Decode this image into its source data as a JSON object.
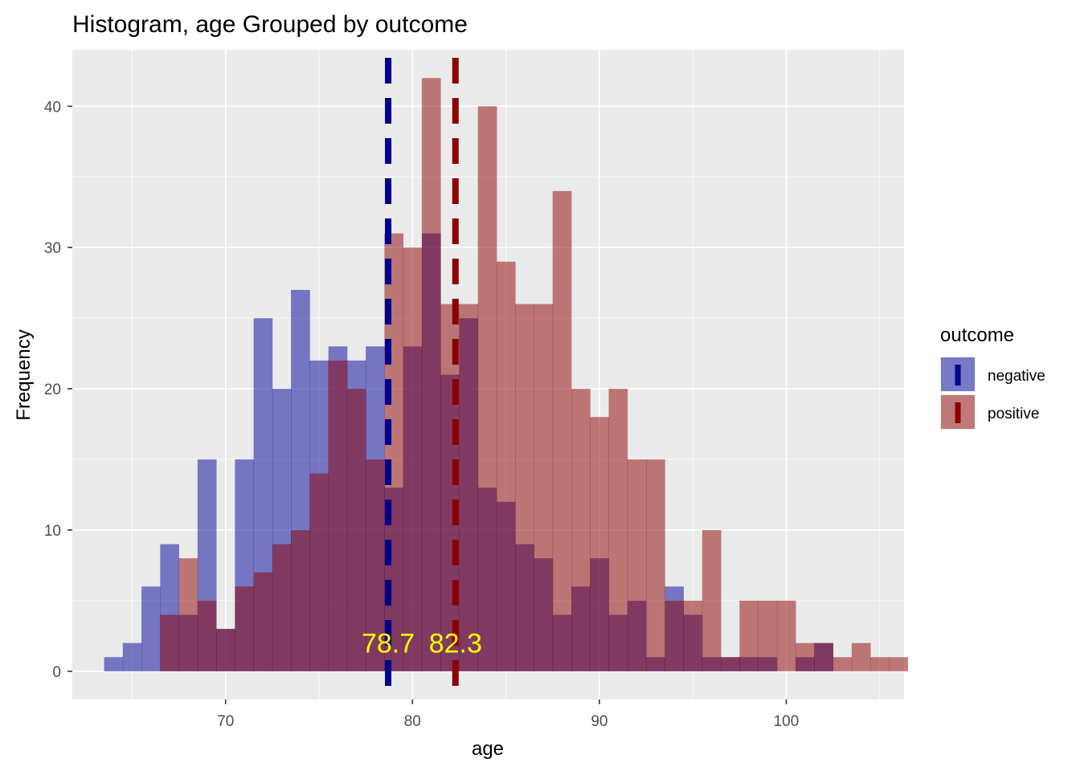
{
  "chart_data": {
    "type": "bar",
    "title": "Histogram, age Grouped by outcome",
    "xlabel": "age",
    "ylabel": "Frequency",
    "xlim": [
      61.8,
      106.3
    ],
    "ylim": [
      -2.0,
      44.0
    ],
    "x_ticks": [
      70,
      80,
      90,
      100
    ],
    "y_ticks": [
      0,
      10,
      20,
      30,
      40
    ],
    "grid": true,
    "bin_start": 63.5,
    "bin_width": 1,
    "series": [
      {
        "name": "negative",
        "color": "#000099",
        "values": [
          1,
          2,
          6,
          9,
          4,
          15,
          3,
          15,
          25,
          20,
          27,
          22,
          23,
          22,
          23,
          13,
          23,
          31,
          21,
          25,
          13,
          12,
          9,
          8,
          4,
          6,
          8,
          4,
          5,
          1,
          6,
          4,
          1,
          1,
          1,
          1,
          0,
          1,
          2,
          0
        ]
      },
      {
        "name": "positive",
        "color": "#8b0000",
        "values": [
          0,
          0,
          0,
          4,
          8,
          5,
          3,
          6,
          7,
          9,
          10,
          14,
          22,
          20,
          15,
          31,
          30,
          42,
          26,
          26,
          40,
          29,
          26,
          26,
          34,
          20,
          18,
          20,
          15,
          15,
          5,
          5,
          10,
          1,
          5,
          5,
          5,
          2,
          2,
          1,
          2,
          1,
          1
        ]
      }
    ],
    "mean_lines": [
      {
        "series": "negative",
        "value": 78.7,
        "label": "78.7",
        "color": "#00008b"
      },
      {
        "series": "positive",
        "value": 82.3,
        "label": "82.3",
        "color": "#8b0000"
      }
    ],
    "annotation_color": "#ffff00",
    "background_color": "#ebebeb",
    "grid_color": "#ffffff",
    "legend": {
      "title": "outcome",
      "placement": "right",
      "entries": [
        "negative",
        "positive"
      ]
    }
  }
}
